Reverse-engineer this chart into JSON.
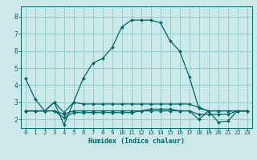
{
  "title": "",
  "xlabel": "Humidex (Indice chaleur)",
  "bg_color": "#cce8e8",
  "grid_color": "#99cccc",
  "line_color": "#006666",
  "xlim": [
    -0.5,
    23.5
  ],
  "ylim": [
    1.5,
    8.6
  ],
  "xticks": [
    0,
    1,
    2,
    3,
    4,
    5,
    6,
    7,
    8,
    9,
    10,
    11,
    12,
    13,
    14,
    15,
    16,
    17,
    18,
    19,
    20,
    21,
    22,
    23
  ],
  "yticks": [
    2,
    3,
    4,
    5,
    6,
    7,
    8
  ],
  "series": [
    [
      4.4,
      3.2,
      2.5,
      3.0,
      1.7,
      3.0,
      4.4,
      5.3,
      5.55,
      6.2,
      7.4,
      7.8,
      7.8,
      7.8,
      7.65,
      6.6,
      6.0,
      4.5,
      2.65,
      2.5,
      1.85,
      1.9,
      2.5,
      2.5
    ],
    [
      2.5,
      2.5,
      2.5,
      3.0,
      2.4,
      3.0,
      2.9,
      2.9,
      2.9,
      2.9,
      2.9,
      2.9,
      2.9,
      2.9,
      2.9,
      2.9,
      2.9,
      2.9,
      2.7,
      2.5,
      2.5,
      2.5,
      2.5,
      2.5
    ],
    [
      2.5,
      2.5,
      2.5,
      2.5,
      2.3,
      2.5,
      2.5,
      2.5,
      2.5,
      2.5,
      2.5,
      2.5,
      2.5,
      2.5,
      2.5,
      2.5,
      2.5,
      2.5,
      2.3,
      2.3,
      2.3,
      2.3,
      2.5,
      2.5
    ],
    [
      2.5,
      2.5,
      2.5,
      2.5,
      2.1,
      2.4,
      2.4,
      2.4,
      2.4,
      2.4,
      2.4,
      2.4,
      2.5,
      2.6,
      2.6,
      2.6,
      2.5,
      2.5,
      2.0,
      2.5,
      2.5,
      2.5,
      2.5,
      2.5
    ]
  ],
  "xlabel_fontsize": 6.0,
  "tick_fontsize": 5.2,
  "ytick_fontsize": 5.8
}
